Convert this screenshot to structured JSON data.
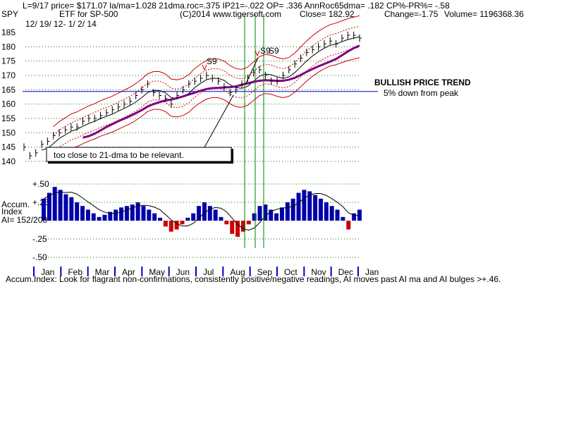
{
  "header": {
    "line1": "L=9/17   price= $171.07   la/ma=1.028  21dma.roc=.375  IP21=-.022  OP= .336  AnnRoc65dma= .182  CP%-PR%= -.58",
    "symbol": "SPY",
    "desc": "ETF for SP-500",
    "copyright": "(C)2014 www.tigersoft.com",
    "close": "Close=  182.92",
    "change": "Change=-1.75",
    "volume": "Volume= 1196368.36",
    "range": "12/ 19/ 12-  1/ 2/ 14"
  },
  "annotations": {
    "bullish": "BULLISH PRICE TREND",
    "peak": "5% down from peak",
    "note": "too close to 21-dma to be relevant.",
    "s9_a": "S9",
    "s9_b": "S9",
    "s9_c": "S9"
  },
  "accum": {
    "label1": "Accum.",
    "label2": "Index",
    "ai": "AI= 152/200"
  },
  "footer": "Accum.Index: Look for flagrant non-confirmations, consistently positive/negative readings, AI moves past AI ma and AI bulges >+.46.",
  "colors": {
    "price": "#000000",
    "band": "#cc0000",
    "ma65": "#800080",
    "hline": "#0000cc",
    "signal": "#008000",
    "acc_pos": "#0000aa",
    "acc_neg": "#cc0000",
    "grid": "#008000"
  },
  "chart_data": [
    {
      "type": "line",
      "panel": "price",
      "ylim": [
        140,
        185
      ],
      "yticks": [
        "185",
        "180",
        "175",
        "170",
        "165",
        "160",
        "155",
        "150",
        "145",
        "140"
      ],
      "months": [
        "Jan",
        "Feb",
        "Mar",
        "Apr",
        "May",
        "Jun",
        "Jul",
        "Aug",
        "Sep",
        "Oct",
        "Nov",
        "Dec",
        "Jan"
      ],
      "horizontal_line": 164.4,
      "series": [
        {
          "values": [
            145,
            142,
            143,
            146,
            147,
            149,
            150,
            151,
            152,
            152,
            154,
            155,
            155,
            156,
            157,
            158,
            159,
            160,
            161,
            163,
            165,
            167,
            164,
            163,
            162,
            160,
            163,
            165,
            167,
            168,
            169,
            170,
            169,
            168,
            166,
            164,
            165,
            167,
            169,
            171,
            172,
            170,
            168,
            168,
            170,
            172,
            174,
            176,
            178,
            179,
            180,
            181,
            182,
            181,
            183,
            184,
            184,
            183
          ]
        }
      ]
    },
    {
      "type": "bar",
      "panel": "accumulation-index",
      "ylim": [
        -0.55,
        0.55
      ],
      "yticks": [
        "+.50",
        "+.25",
        "-.25",
        "-.50"
      ],
      "values": [
        0.3,
        0.38,
        0.46,
        0.42,
        0.36,
        0.32,
        0.25,
        0.2,
        0.15,
        0.1,
        0.05,
        0.08,
        0.12,
        0.15,
        0.18,
        0.2,
        0.22,
        0.25,
        0.2,
        0.15,
        0.1,
        0.04,
        -0.08,
        -0.15,
        -0.12,
        -0.05,
        0.04,
        0.1,
        0.2,
        0.25,
        0.2,
        0.15,
        0.05,
        -0.05,
        -0.18,
        -0.22,
        -0.15,
        -0.05,
        0.1,
        0.2,
        0.22,
        0.15,
        0.1,
        0.18,
        0.25,
        0.3,
        0.38,
        0.42,
        0.4,
        0.35,
        0.3,
        0.25,
        0.2,
        0.15,
        0.05,
        -0.12,
        0.1,
        0.15
      ]
    }
  ]
}
